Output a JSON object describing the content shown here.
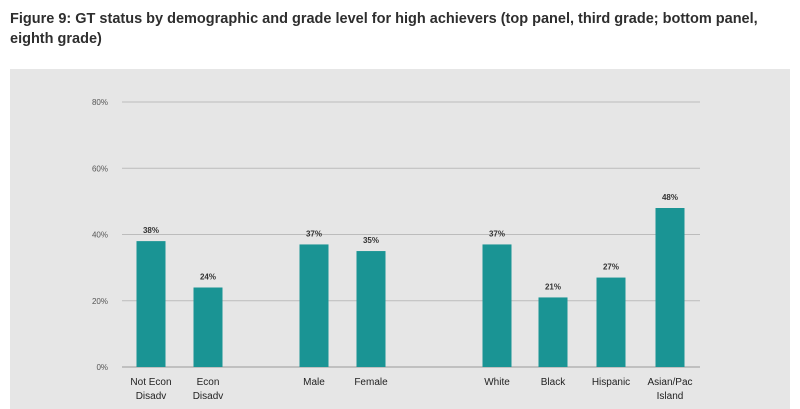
{
  "figure": {
    "title": "Figure 9: GT status by demographic and grade level for high achievers (top panel, third grade; bottom panel, eighth grade)"
  },
  "chart_data": {
    "type": "bar",
    "categories": [
      "Not Econ Disadv",
      "Econ Disadv",
      "Male",
      "Female",
      "White",
      "Black",
      "Hispanic",
      "Asian/Pac Island"
    ],
    "category_lines": [
      [
        "Not Econ",
        "Disadv"
      ],
      [
        "Econ",
        "Disadv"
      ],
      [
        "Male"
      ],
      [
        "Female"
      ],
      [
        "White"
      ],
      [
        "Black"
      ],
      [
        "Hispanic"
      ],
      [
        "Asian/Pac",
        "Island"
      ]
    ],
    "values": [
      38,
      24,
      37,
      35,
      37,
      21,
      27,
      48
    ],
    "data_labels": [
      "38%",
      "24%",
      "37%",
      "35%",
      "37%",
      "21%",
      "27%",
      "48%"
    ],
    "ylim": [
      0,
      80
    ],
    "yticks": [
      0,
      20,
      40,
      60,
      80
    ],
    "ytick_labels": [
      "0%",
      "20%",
      "40%",
      "60%",
      "80%"
    ],
    "grid": true,
    "colors": {
      "bar": "#1a9494",
      "grid": "#bcbcbc",
      "text": "#222222",
      "panel": "#e6e6e6"
    }
  }
}
